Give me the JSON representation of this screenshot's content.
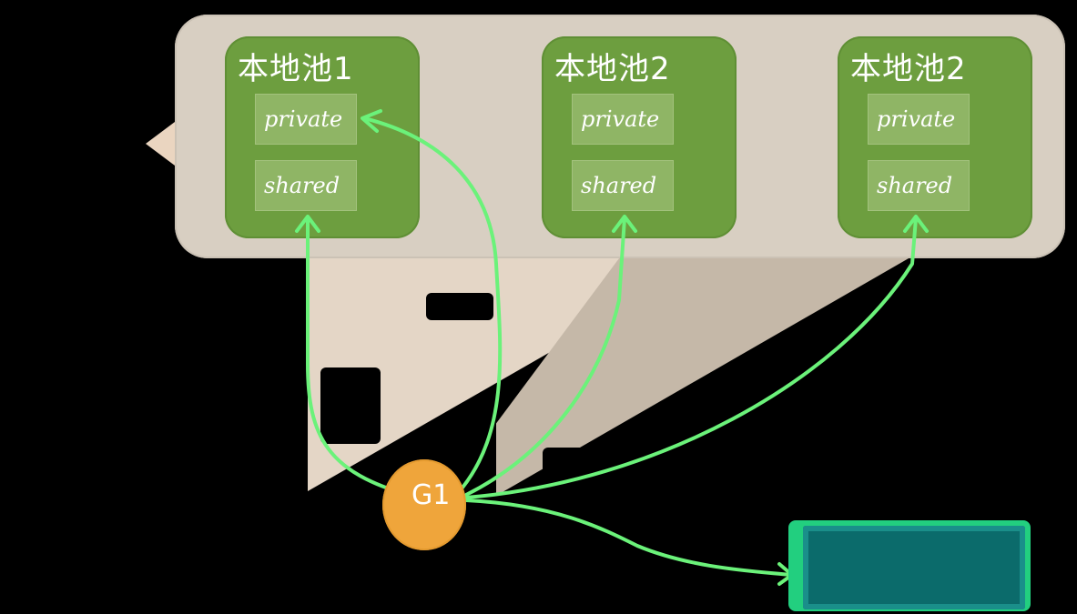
{
  "pools": [
    {
      "title": "本地池1",
      "slots": {
        "private": "private",
        "shared": "shared"
      }
    },
    {
      "title": "本地池2",
      "slots": {
        "private": "private",
        "shared": "shared"
      }
    },
    {
      "title": "本地池2",
      "slots": {
        "private": "private",
        "shared": "shared"
      }
    }
  ],
  "goroutine": {
    "label": "G1"
  },
  "colors": {
    "pool_band": "#d8cfc2",
    "pool_card": "#6d9e3f",
    "slot": "#8fb565",
    "arrow": "#6bf27a",
    "goroutine": "#efa53b",
    "teal_box": "#0b6b6b"
  }
}
